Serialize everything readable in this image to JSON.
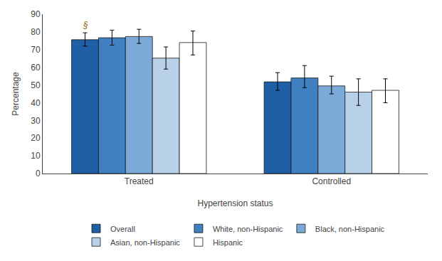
{
  "chart_data": {
    "type": "bar",
    "categories": [
      "Treated",
      "Controlled"
    ],
    "series": [
      {
        "name": "Overall",
        "color": "#1F5FA6",
        "values": [
          75.6,
          51.8
        ],
        "ci_lower": [
          72.0,
          47.0
        ],
        "ci_upper": [
          79.5,
          57.0
        ]
      },
      {
        "name": "White, non-Hispanic",
        "color": "#4080C0",
        "values": [
          76.7,
          54.0
        ],
        "ci_lower": [
          72.5,
          48.5
        ],
        "ci_upper": [
          81.0,
          61.0
        ]
      },
      {
        "name": "Black, non-Hispanic",
        "color": "#7BAAD8",
        "values": [
          77.4,
          49.5
        ],
        "ci_lower": [
          73.5,
          45.0
        ],
        "ci_upper": [
          81.5,
          55.0
        ]
      },
      {
        "name": "Asian, non-Hispanic",
        "color": "#B8D0E8",
        "values": [
          65.2,
          46.0
        ],
        "ci_lower": [
          59.0,
          38.5
        ],
        "ci_upper": [
          71.5,
          53.5
        ]
      },
      {
        "name": "Hispanic",
        "color": "#FFFFFF",
        "values": [
          74.0,
          47.0
        ],
        "ci_lower": [
          67.0,
          40.0
        ],
        "ci_upper": [
          80.5,
          53.5
        ]
      }
    ],
    "xlabel": "Hypertension status",
    "ylabel": "Percentage",
    "ylim": [
      0,
      90
    ],
    "yticks": [
      0,
      10,
      20,
      30,
      40,
      50,
      60,
      70,
      80,
      90
    ],
    "grid": false,
    "legend": "bottom",
    "annotations": [
      {
        "text": "§",
        "series": "Overall",
        "category": "Treated",
        "color": "#8B6000"
      }
    ]
  }
}
